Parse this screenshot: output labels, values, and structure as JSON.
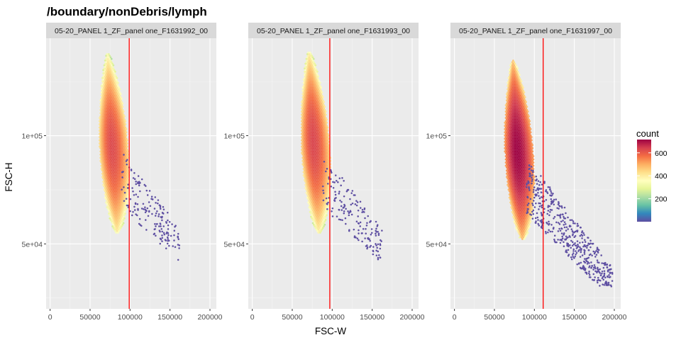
{
  "chart_data": {
    "type": "hexbin",
    "title": "/boundary/nonDebris/lymph",
    "xlabel": "FSC-W",
    "ylabel": "FSC-H",
    "xlim": [
      -5000,
      208000
    ],
    "ylim": [
      20000,
      145000
    ],
    "x_ticks": [
      0,
      50000,
      100000,
      150000,
      200000
    ],
    "x_tick_labels": [
      "0",
      "50000",
      "100000",
      "150000",
      "200000"
    ],
    "y_ticks": [
      50000,
      100000
    ],
    "y_tick_labels": [
      "5e+04",
      "1e+05"
    ],
    "grid": true,
    "legend": {
      "title": "count",
      "position": "right",
      "ticks": [
        200,
        400,
        600
      ],
      "tick_labels": [
        "200",
        "400",
        "600"
      ],
      "range": [
        1,
        680
      ],
      "palette": [
        "#5e4fa2",
        "#3288bd",
        "#66c2a5",
        "#abdda4",
        "#e6f598",
        "#ffffbf",
        "#fee08b",
        "#fdae61",
        "#f46d43",
        "#d53e4f",
        "#9e0142"
      ]
    },
    "gate_color": "#ff0000",
    "panels": [
      {
        "strip_label": "05-20_PANEL 1_ZF_panel one_F1631992_00",
        "gate_x": 99000,
        "population": {
          "center_x": 77000,
          "center_y": 95000,
          "y_min": 55000,
          "y_max": 138000,
          "peak_count": 300,
          "tail_max_x": 162000,
          "tail_min_y": 36000
        }
      },
      {
        "strip_label": "05-20_PANEL 1_ZF_panel one_F1631993_00",
        "gate_x": 97000,
        "population": {
          "center_x": 76000,
          "center_y": 97000,
          "y_min": 55000,
          "y_max": 139000,
          "peak_count": 320,
          "tail_max_x": 163000,
          "tail_min_y": 36000
        }
      },
      {
        "strip_label": "05-20_PANEL 1_ZF_panel one_F1631997_00",
        "gate_x": 111000,
        "population": {
          "center_x": 78000,
          "center_y": 93000,
          "y_min": 52000,
          "y_max": 135000,
          "peak_count": 680,
          "tail_max_x": 198000,
          "tail_min_y": 30000
        }
      }
    ]
  }
}
